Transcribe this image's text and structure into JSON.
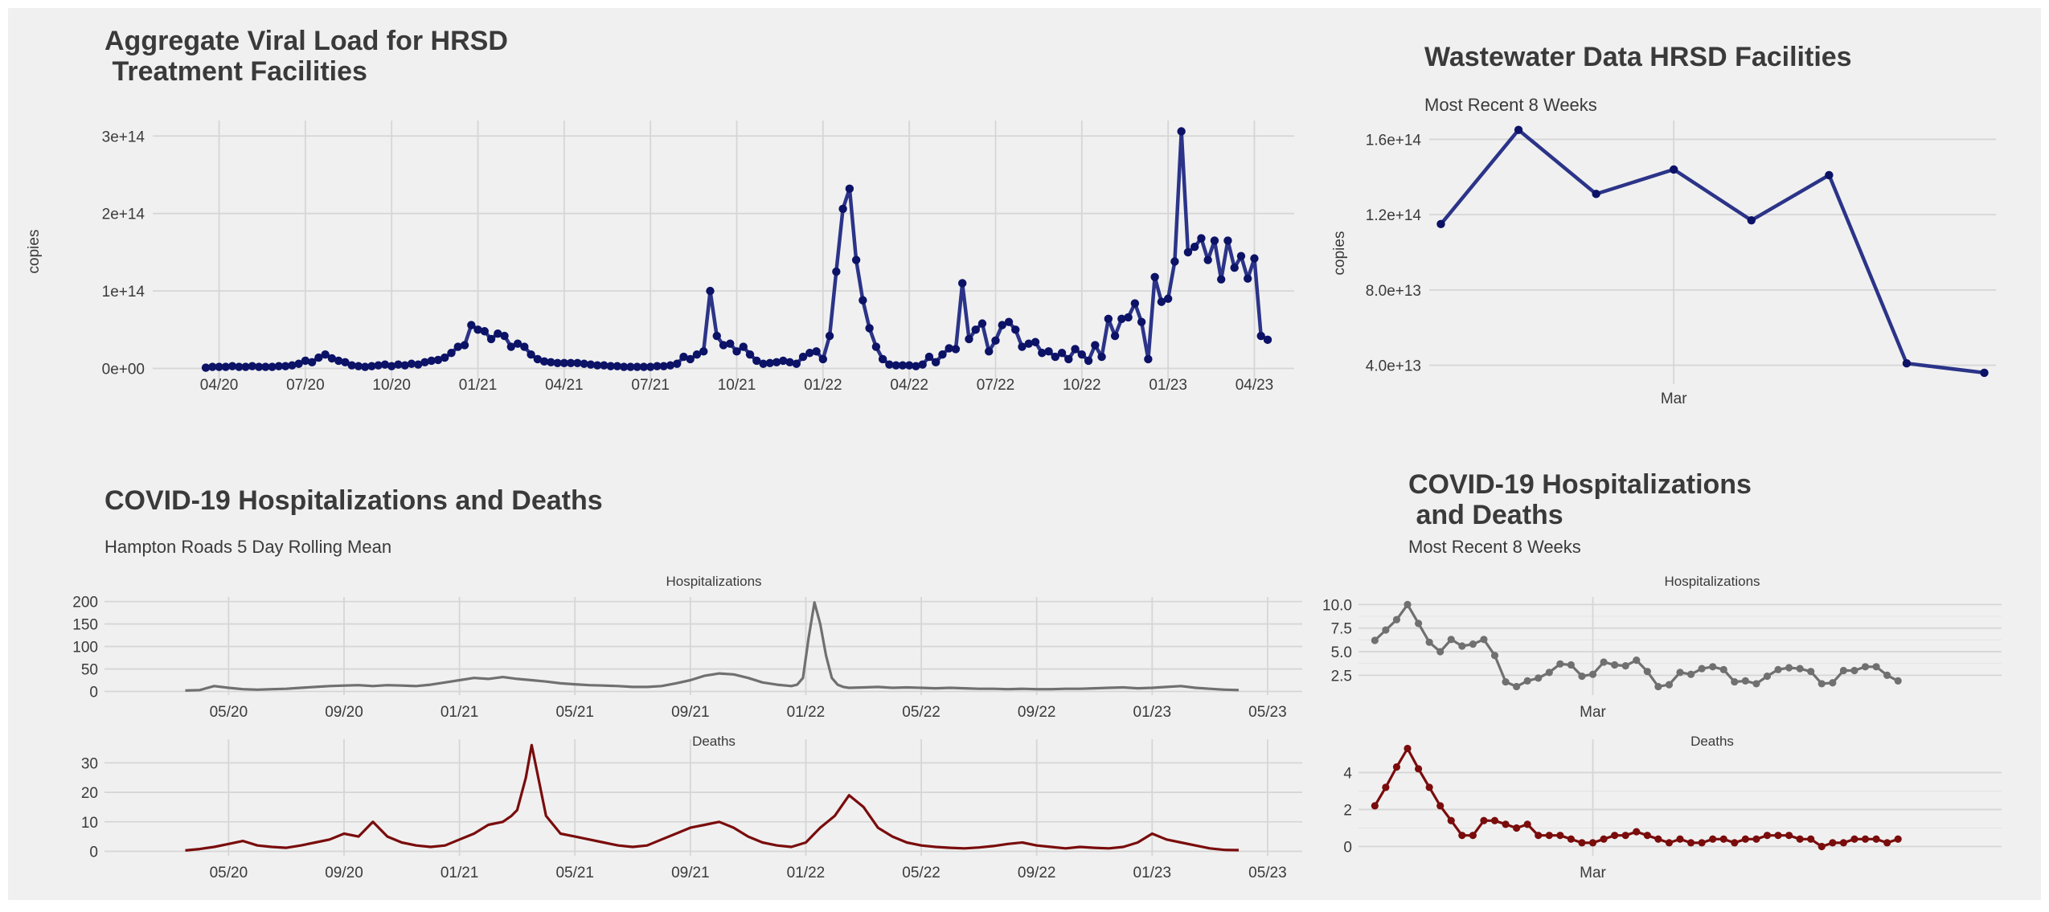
{
  "colors": {
    "background": "#f0f0f0",
    "grid": "#d6d6d6",
    "text": "#3a3a3a",
    "viral": "#2b3488",
    "viral_point": "#0c1266",
    "hosp": "#707070",
    "deaths": "#7a0c0c"
  },
  "chart_data": [
    {
      "id": "viral_load",
      "type": "line",
      "title": "Aggregate Viral Load for HRSD\n Treatment Facilities",
      "subtitle": "",
      "xlabel": "",
      "ylabel": "copies",
      "x_tick_labels": [
        "04/20",
        "07/20",
        "10/20",
        "01/21",
        "04/21",
        "07/21",
        "10/21",
        "01/22",
        "04/22",
        "07/22",
        "10/22",
        "01/23",
        "04/23"
      ],
      "y_tick_labels": [
        "0e+00",
        "1e+14",
        "2e+14",
        "3e+14"
      ],
      "xlim": [
        -8,
        164
      ],
      "ylim": [
        -0.15,
        3.2
      ],
      "y_unit": "1e+14 copies",
      "x_unit": "weeks since 2020-03-17",
      "x_ticks": [
        2,
        15,
        28,
        41,
        54,
        67,
        80,
        93,
        106,
        119,
        132,
        145,
        158
      ],
      "y_ticks": [
        0,
        1,
        2,
        3
      ],
      "grid": true,
      "series": [
        {
          "name": "viral load",
          "values": [
            0.01,
            0.02,
            0.02,
            0.02,
            0.03,
            0.02,
            0.02,
            0.03,
            0.02,
            0.02,
            0.02,
            0.03,
            0.03,
            0.04,
            0.06,
            0.1,
            0.08,
            0.14,
            0.18,
            0.13,
            0.1,
            0.08,
            0.04,
            0.03,
            0.02,
            0.03,
            0.04,
            0.05,
            0.03,
            0.05,
            0.04,
            0.06,
            0.05,
            0.08,
            0.1,
            0.11,
            0.14,
            0.2,
            0.28,
            0.3,
            0.56,
            0.5,
            0.48,
            0.38,
            0.45,
            0.42,
            0.28,
            0.32,
            0.28,
            0.18,
            0.12,
            0.09,
            0.08,
            0.07,
            0.07,
            0.07,
            0.07,
            0.06,
            0.05,
            0.04,
            0.04,
            0.03,
            0.03,
            0.02,
            0.02,
            0.02,
            0.02,
            0.02,
            0.03,
            0.03,
            0.04,
            0.06,
            0.15,
            0.12,
            0.18,
            0.22,
            1.0,
            0.42,
            0.3,
            0.32,
            0.22,
            0.28,
            0.18,
            0.1,
            0.06,
            0.07,
            0.08,
            0.1,
            0.08,
            0.06,
            0.15,
            0.2,
            0.22,
            0.12,
            0.42,
            1.25,
            2.06,
            2.32,
            1.4,
            0.88,
            0.52,
            0.28,
            0.12,
            0.05,
            0.04,
            0.04,
            0.04,
            0.03,
            0.05,
            0.15,
            0.08,
            0.18,
            0.26,
            0.25,
            1.1,
            0.38,
            0.5,
            0.58,
            0.22,
            0.36,
            0.56,
            0.6,
            0.5,
            0.28,
            0.32,
            0.34,
            0.2,
            0.22,
            0.15,
            0.2,
            0.12,
            0.25,
            0.18,
            0.1,
            0.3,
            0.15,
            0.64,
            0.42,
            0.64,
            0.66,
            0.84,
            0.6,
            0.12,
            1.18,
            0.86,
            0.9,
            1.38,
            3.06,
            1.5,
            1.57,
            1.68,
            1.4,
            1.65,
            1.15,
            1.65,
            1.3,
            1.45,
            1.16,
            1.42,
            0.42,
            0.37
          ]
        }
      ]
    },
    {
      "id": "wastewater_recent",
      "type": "line",
      "title": "Wastewater Data HRSD Facilities",
      "subtitle": "Most Recent 8 Weeks",
      "xlabel": "",
      "ylabel": "copies",
      "x_tick_labels": [
        "Mar"
      ],
      "x_ticks": [
        3
      ],
      "y_tick_labels": [
        "4.0e+13",
        "8.0e+13",
        "1.2e+14",
        "1.6e+14"
      ],
      "y_ticks": [
        4,
        8,
        12,
        16
      ],
      "xlim": [
        -0.15,
        7.15
      ],
      "ylim": [
        3.0,
        17.0
      ],
      "y_unit": "1e+13 copies",
      "x_unit": "week index",
      "grid": true,
      "series": [
        {
          "name": "viral load",
          "values": [
            11.5,
            16.5,
            13.1,
            14.4,
            11.7,
            14.1,
            4.1,
            3.6
          ]
        }
      ]
    },
    {
      "id": "hosp_deaths_full",
      "type": "line",
      "title": "COVID-19 Hospitalizations and Deaths",
      "subtitle": "Hampton Roads 5 Day Rolling Mean",
      "x_tick_labels": [
        "05/20",
        "09/20",
        "01/21",
        "05/21",
        "09/21",
        "01/22",
        "05/22",
        "09/22",
        "01/23",
        "05/23"
      ],
      "x_unit": "months since 2020-03-15",
      "x_ticks": [
        1.5,
        5.5,
        9.5,
        13.5,
        17.5,
        21.5,
        25.5,
        29.5,
        33.5,
        37.5
      ],
      "xlim": [
        -2.8,
        38.7
      ],
      "grid": true,
      "panels": [
        {
          "name": "Hospitalizations",
          "y_tick_labels": [
            "0",
            "50",
            "100",
            "150",
            "200"
          ],
          "y_ticks": [
            0,
            50,
            100,
            150,
            200
          ],
          "ylim": [
            -8,
            210
          ],
          "x": [
            0,
            0.5,
            1,
            1.5,
            2,
            2.5,
            3,
            3.5,
            4,
            4.5,
            5,
            5.5,
            6,
            6.5,
            7,
            7.5,
            8,
            8.5,
            9,
            9.5,
            10,
            10.5,
            11,
            11.5,
            12,
            12.5,
            13,
            13.5,
            14,
            14.5,
            15,
            15.5,
            16,
            16.5,
            17,
            17.5,
            18,
            18.5,
            19,
            19.5,
            20,
            20.5,
            21,
            21.2,
            21.4,
            21.6,
            21.8,
            22,
            22.2,
            22.4,
            22.6,
            22.8,
            23,
            23.5,
            24,
            24.5,
            25,
            25.5,
            26,
            26.5,
            27,
            27.5,
            28,
            28.5,
            29,
            29.5,
            30,
            30.5,
            31,
            31.5,
            32,
            32.5,
            33,
            33.5,
            34,
            34.5,
            35,
            35.5,
            36,
            36.5
          ],
          "values": [
            2,
            3,
            12,
            8,
            5,
            4,
            5,
            6,
            8,
            10,
            12,
            13,
            14,
            12,
            14,
            13,
            12,
            15,
            20,
            25,
            30,
            28,
            32,
            28,
            25,
            22,
            18,
            16,
            14,
            13,
            12,
            10,
            10,
            12,
            18,
            25,
            35,
            40,
            38,
            30,
            20,
            15,
            12,
            15,
            30,
            120,
            198,
            150,
            80,
            30,
            15,
            10,
            8,
            9,
            10,
            8,
            9,
            8,
            7,
            8,
            7,
            6,
            6,
            5,
            6,
            5,
            5,
            6,
            6,
            7,
            8,
            9,
            7,
            8,
            10,
            12,
            8,
            6,
            4,
            3
          ]
        },
        {
          "name": "Deaths",
          "y_tick_labels": [
            "0",
            "10",
            "20",
            "30"
          ],
          "y_ticks": [
            0,
            10,
            20,
            30
          ],
          "ylim": [
            -1.5,
            38
          ],
          "x": [
            0,
            0.5,
            1,
            1.5,
            2,
            2.5,
            3,
            3.5,
            4,
            4.5,
            5,
            5.5,
            6,
            6.5,
            7,
            7.5,
            8,
            8.5,
            9,
            9.5,
            10,
            10.5,
            11,
            11.3,
            11.5,
            11.8,
            12,
            12.5,
            13,
            13.5,
            14,
            14.5,
            15,
            15.5,
            16,
            16.5,
            17,
            17.5,
            18,
            18.5,
            19,
            19.5,
            20,
            20.5,
            21,
            21.5,
            22,
            22.5,
            23,
            23.5,
            24,
            24.5,
            25,
            25.5,
            26,
            26.5,
            27,
            27.5,
            28,
            28.5,
            29,
            29.5,
            30,
            30.5,
            31,
            31.5,
            32,
            32.5,
            33,
            33.5,
            34,
            34.5,
            35,
            35.5,
            36,
            36.5
          ],
          "values": [
            0.3,
            0.8,
            1.5,
            2.5,
            3.5,
            2,
            1.5,
            1.2,
            2,
            3,
            4,
            6,
            5,
            10,
            5,
            3,
            2,
            1.5,
            2,
            4,
            6,
            9,
            10,
            12,
            14,
            25,
            36,
            12,
            6,
            5,
            4,
            3,
            2,
            1.5,
            2,
            4,
            6,
            8,
            9,
            10,
            8,
            5,
            3,
            2,
            1.5,
            3,
            8,
            12,
            19,
            15,
            8,
            5,
            3,
            2,
            1.5,
            1.2,
            1,
            1.3,
            1.8,
            2.5,
            3,
            2,
            1.5,
            1,
            1.5,
            1.2,
            1,
            1.5,
            3,
            6,
            4,
            3,
            2,
            1,
            0.5,
            0.4
          ]
        }
      ]
    },
    {
      "id": "hosp_deaths_recent",
      "type": "line",
      "title": "COVID-19 Hospitalizations\n and Deaths",
      "subtitle": "Most Recent 8 Weeks",
      "x_tick_labels": [
        "Mar"
      ],
      "x_ticks": [
        20
      ],
      "xlim": [
        -1.5,
        57.5
      ],
      "x_unit": "day index",
      "grid": true,
      "panels": [
        {
          "name": "Hospitalizations",
          "y_tick_labels": [
            "2.5",
            "5.0",
            "7.5",
            "10.0"
          ],
          "y_ticks": [
            2.5,
            5.0,
            7.5,
            10.0
          ],
          "ylim": [
            0.4,
            10.8
          ],
          "values": [
            6.2,
            7.3,
            8.4,
            10.0,
            8.0,
            6.0,
            5.0,
            6.3,
            5.6,
            5.8,
            6.3,
            4.6,
            1.8,
            1.3,
            1.9,
            2.2,
            2.8,
            3.7,
            3.6,
            2.4,
            2.6,
            3.9,
            3.6,
            3.5,
            4.1,
            2.9,
            1.3,
            1.5,
            2.8,
            2.6,
            3.2,
            3.4,
            3.1,
            1.8,
            1.9,
            1.6,
            2.4,
            3.1,
            3.3,
            3.2,
            2.9,
            1.6,
            1.7,
            3.0,
            3.0,
            3.4,
            3.4,
            2.5,
            1.9
          ]
        },
        {
          "name": "Deaths",
          "y_tick_labels": [
            "0",
            "2",
            "4"
          ],
          "y_ticks": [
            0,
            2,
            4
          ],
          "ylim": [
            -0.5,
            5.8
          ],
          "values": [
            2.2,
            3.2,
            4.3,
            5.3,
            4.2,
            3.2,
            2.2,
            1.4,
            0.6,
            0.6,
            1.4,
            1.4,
            1.2,
            1.0,
            1.2,
            0.6,
            0.6,
            0.6,
            0.4,
            0.2,
            0.2,
            0.4,
            0.6,
            0.6,
            0.8,
            0.6,
            0.4,
            0.2,
            0.4,
            0.2,
            0.2,
            0.4,
            0.4,
            0.2,
            0.4,
            0.4,
            0.6,
            0.6,
            0.6,
            0.4,
            0.4,
            0.0,
            0.2,
            0.2,
            0.4,
            0.4,
            0.4,
            0.2,
            0.4
          ]
        }
      ]
    }
  ]
}
